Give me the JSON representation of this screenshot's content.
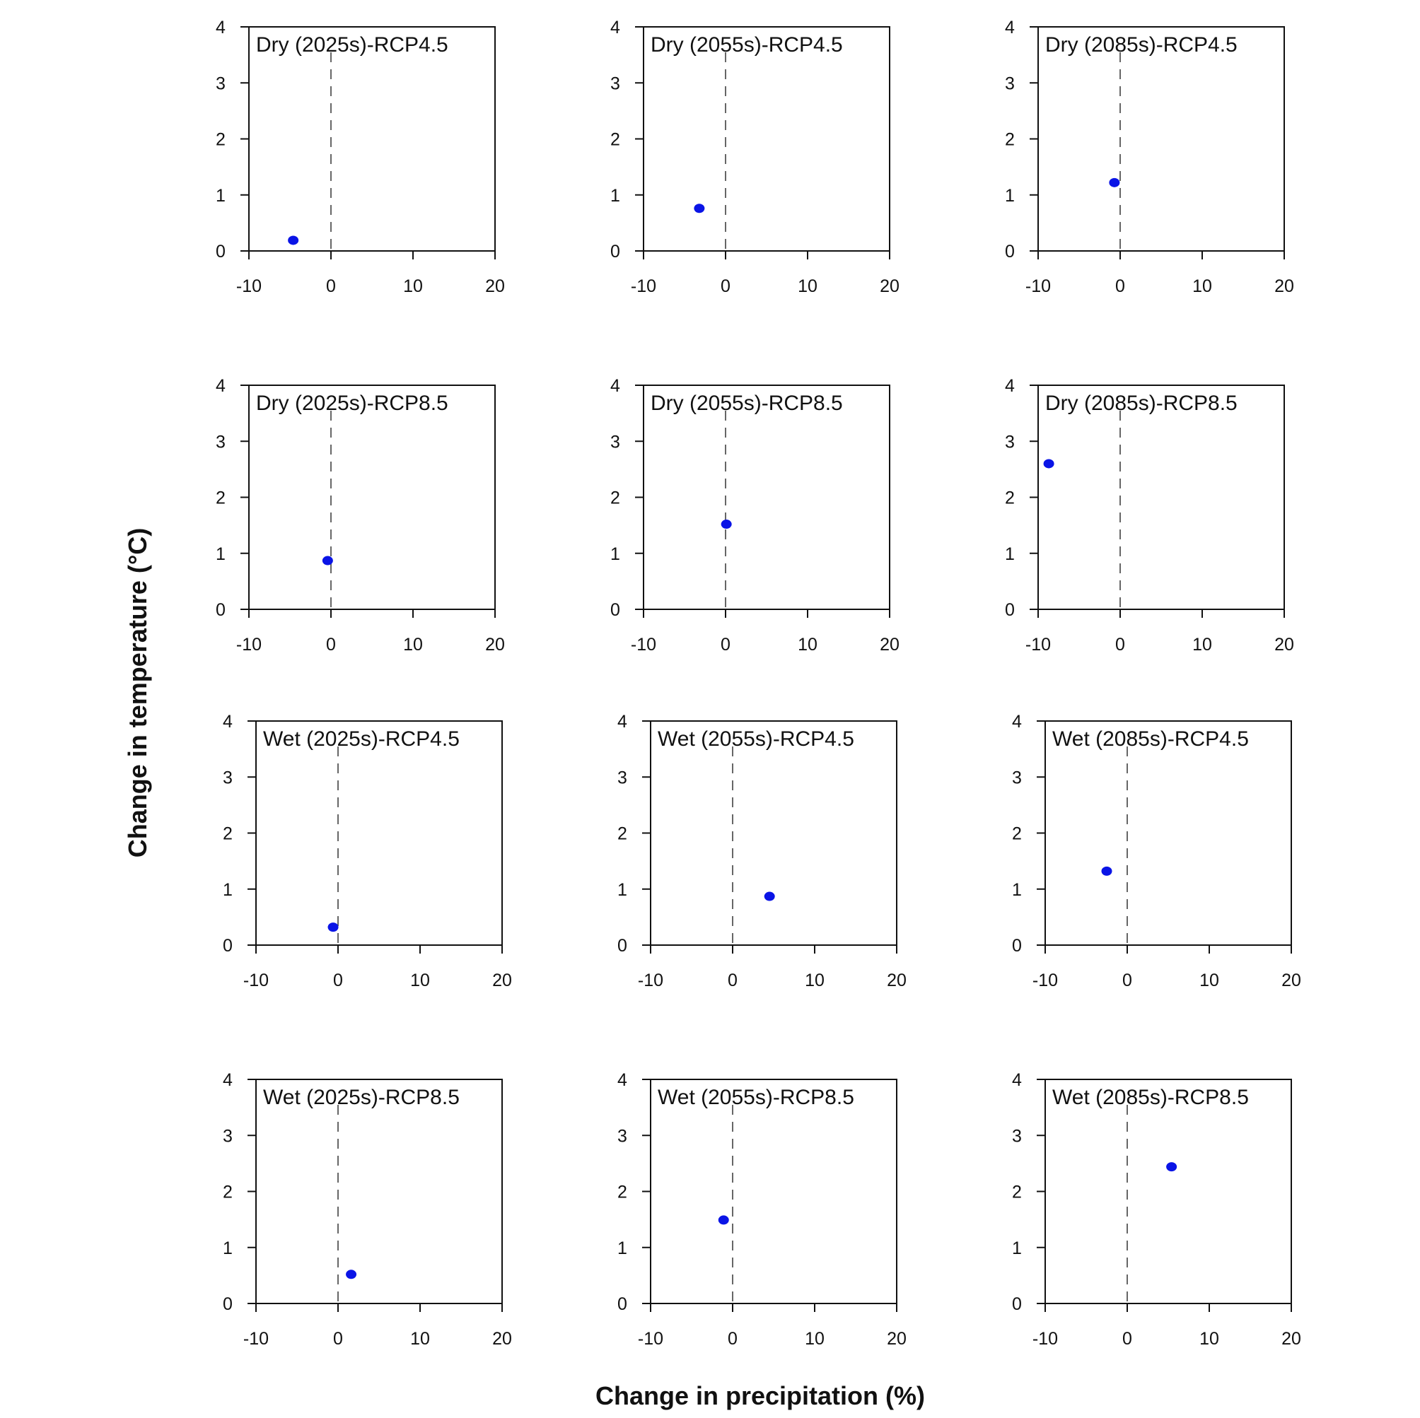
{
  "figure": {
    "ylabel": "Change in temperature (°C)",
    "xlabel": "Change in precipitation (%)",
    "point_color": "#0a14e6"
  },
  "chart_data": [
    {
      "type": "scatter",
      "title": "Dry (2025s)-RCP4.5",
      "xlim": [
        -10,
        20
      ],
      "ylim": [
        0,
        4
      ],
      "x": [
        -4.6
      ],
      "y": [
        0.19
      ],
      "xticks": [
        "-10",
        "0",
        "10",
        "20"
      ],
      "yticks": [
        "0",
        "1",
        "2",
        "3",
        "4"
      ],
      "ref_line_x": 0
    },
    {
      "type": "scatter",
      "title": "Dry (2055s)-RCP4.5",
      "xlim": [
        -10,
        20
      ],
      "ylim": [
        0,
        4
      ],
      "x": [
        -3.2
      ],
      "y": [
        0.76
      ],
      "xticks": [
        "-10",
        "0",
        "10",
        "20"
      ],
      "yticks": [
        "0",
        "1",
        "2",
        "3",
        "4"
      ],
      "ref_line_x": 0
    },
    {
      "type": "scatter",
      "title": "Dry (2085s)-RCP4.5",
      "xlim": [
        -10,
        20
      ],
      "ylim": [
        0,
        4
      ],
      "x": [
        -0.7
      ],
      "y": [
        1.22
      ],
      "xticks": [
        "-10",
        "0",
        "10",
        "20"
      ],
      "yticks": [
        "0",
        "1",
        "2",
        "3",
        "4"
      ],
      "ref_line_x": 0
    },
    {
      "type": "scatter",
      "title": "Dry (2025s)-RCP8.5",
      "xlim": [
        -10,
        20
      ],
      "ylim": [
        0,
        4
      ],
      "x": [
        -0.4
      ],
      "y": [
        0.87
      ],
      "xticks": [
        "-10",
        "0",
        "10",
        "20"
      ],
      "yticks": [
        "0",
        "1",
        "2",
        "3",
        "4"
      ],
      "ref_line_x": 0
    },
    {
      "type": "scatter",
      "title": "Dry (2055s)-RCP8.5",
      "xlim": [
        -10,
        20
      ],
      "ylim": [
        0,
        4
      ],
      "x": [
        0.1
      ],
      "y": [
        1.52
      ],
      "xticks": [
        "-10",
        "0",
        "10",
        "20"
      ],
      "yticks": [
        "0",
        "1",
        "2",
        "3",
        "4"
      ],
      "ref_line_x": 0
    },
    {
      "type": "scatter",
      "title": "Dry (2085s)-RCP8.5",
      "xlim": [
        -10,
        20
      ],
      "ylim": [
        0,
        4
      ],
      "x": [
        -8.7
      ],
      "y": [
        2.6
      ],
      "xticks": [
        "-10",
        "0",
        "10",
        "20"
      ],
      "yticks": [
        "0",
        "1",
        "2",
        "3",
        "4"
      ],
      "ref_line_x": 0
    },
    {
      "type": "scatter",
      "title": "Wet (2025s)-RCP4.5",
      "xlim": [
        -10,
        20
      ],
      "ylim": [
        0,
        4
      ],
      "x": [
        -0.6
      ],
      "y": [
        0.32
      ],
      "xticks": [
        "-10",
        "0",
        "10",
        "20"
      ],
      "yticks": [
        "0",
        "1",
        "2",
        "3",
        "4"
      ],
      "ref_line_x": 0
    },
    {
      "type": "scatter",
      "title": "Wet (2055s)-RCP4.5",
      "xlim": [
        -10,
        20
      ],
      "ylim": [
        0,
        4
      ],
      "x": [
        4.5
      ],
      "y": [
        0.87
      ],
      "xticks": [
        "-10",
        "0",
        "10",
        "20"
      ],
      "yticks": [
        "0",
        "1",
        "2",
        "3",
        "4"
      ],
      "ref_line_x": 0
    },
    {
      "type": "scatter",
      "title": "Wet (2085s)-RCP4.5",
      "xlim": [
        -10,
        20
      ],
      "ylim": [
        0,
        4
      ],
      "x": [
        -2.5
      ],
      "y": [
        1.32
      ],
      "xticks": [
        "-10",
        "0",
        "10",
        "20"
      ],
      "yticks": [
        "0",
        "1",
        "2",
        "3",
        "4"
      ],
      "ref_line_x": 0
    },
    {
      "type": "scatter",
      "title": "Wet (2025s)-RCP8.5",
      "xlim": [
        -10,
        20
      ],
      "ylim": [
        0,
        4
      ],
      "x": [
        1.6
      ],
      "y": [
        0.52
      ],
      "xticks": [
        "-10",
        "0",
        "10",
        "20"
      ],
      "yticks": [
        "0",
        "1",
        "2",
        "3",
        "4"
      ],
      "ref_line_x": 0
    },
    {
      "type": "scatter",
      "title": "Wet (2055s)-RCP8.5",
      "xlim": [
        -10,
        20
      ],
      "ylim": [
        0,
        4
      ],
      "x": [
        -1.1
      ],
      "y": [
        1.49
      ],
      "xticks": [
        "-10",
        "0",
        "10",
        "20"
      ],
      "yticks": [
        "0",
        "1",
        "2",
        "3",
        "4"
      ],
      "ref_line_x": 0
    },
    {
      "type": "scatter",
      "title": "Wet (2085s)-RCP8.5",
      "xlim": [
        -10,
        20
      ],
      "ylim": [
        0,
        4
      ],
      "x": [
        5.4
      ],
      "y": [
        2.44
      ],
      "xticks": [
        "-10",
        "0",
        "10",
        "20"
      ],
      "yticks": [
        "0",
        "1",
        "2",
        "3",
        "4"
      ],
      "ref_line_x": 0
    }
  ]
}
